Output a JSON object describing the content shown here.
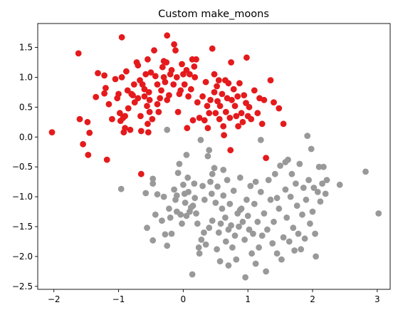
{
  "chart_data": {
    "type": "scatter",
    "title": "Custom make_moons",
    "xlabel": "",
    "ylabel": "",
    "xlim": [
      -2.25,
      3.2
    ],
    "ylim": [
      -2.55,
      1.9
    ],
    "xticks": [
      -2,
      -1,
      0,
      1,
      2,
      3
    ],
    "yticks": [
      -2.5,
      -2.0,
      -1.5,
      -1.0,
      -0.5,
      0.0,
      0.5,
      1.0,
      1.5
    ],
    "tick_labels_x": [
      "−2",
      "−1",
      "0",
      "1",
      "2",
      "3"
    ],
    "tick_labels_y": [
      "−2.5",
      "−2.0",
      "−1.5",
      "−1.0",
      "−0.5",
      "0.0",
      "0.5",
      "1.0",
      "1.5"
    ],
    "grid": false,
    "legend": "none",
    "series": [
      {
        "color": "#e41a1c",
        "points": [
          [
            -2.03,
            0.08
          ],
          [
            -1.62,
            1.4
          ],
          [
            -1.6,
            0.3
          ],
          [
            -1.55,
            -0.12
          ],
          [
            -1.48,
            0.25
          ],
          [
            -1.45,
            0.07
          ],
          [
            -1.47,
            -0.3
          ],
          [
            -1.35,
            0.67
          ],
          [
            -1.32,
            1.07
          ],
          [
            -1.22,
            1.03
          ],
          [
            -1.22,
            0.73
          ],
          [
            -1.2,
            0.82
          ],
          [
            -1.18,
            -0.38
          ],
          [
            -1.15,
            0.55
          ],
          [
            -1.1,
            0.3
          ],
          [
            -1.05,
            0.97
          ],
          [
            -1.02,
            0.65
          ],
          [
            -1.0,
            0.72
          ],
          [
            -0.98,
            0.4
          ],
          [
            -0.97,
            0.27
          ],
          [
            -0.95,
            1.0
          ],
          [
            -0.95,
            1.67
          ],
          [
            -0.93,
            0.32
          ],
          [
            -0.92,
            0.08
          ],
          [
            -0.9,
            0.35
          ],
          [
            -0.9,
            0.15
          ],
          [
            -0.88,
            1.1
          ],
          [
            -0.86,
            0.78
          ],
          [
            -0.85,
            0.48
          ],
          [
            -0.82,
            0.12
          ],
          [
            -0.8,
            0.72
          ],
          [
            -0.78,
            0.7
          ],
          [
            -0.76,
            0.88
          ],
          [
            -0.75,
            0.58
          ],
          [
            -0.72,
            1.25
          ],
          [
            -0.7,
            1.2
          ],
          [
            -0.67,
            0.95
          ],
          [
            -0.66,
            0.35
          ],
          [
            -0.65,
            0.1
          ],
          [
            -0.65,
            -0.62
          ],
          [
            -0.63,
            0.88
          ],
          [
            -0.6,
            0.68
          ],
          [
            -0.6,
            0.8
          ],
          [
            -0.58,
            1.05
          ],
          [
            -0.56,
            0.52
          ],
          [
            -0.55,
            0.22
          ],
          [
            -0.55,
            1.3
          ],
          [
            -0.54,
            0.08
          ],
          [
            -0.53,
            0.75
          ],
          [
            -0.52,
            0.42
          ],
          [
            -0.52,
            0.62
          ],
          [
            -0.5,
            1.08
          ],
          [
            -0.48,
            0.3
          ],
          [
            -0.45,
            1.45
          ],
          [
            -0.43,
            1.02
          ],
          [
            -0.4,
            0.88
          ],
          [
            -0.4,
            0.55
          ],
          [
            -0.38,
            0.42
          ],
          [
            -0.36,
            0.65
          ],
          [
            -0.34,
            0.78
          ],
          [
            -0.32,
            1.17
          ],
          [
            -0.3,
            1.27
          ],
          [
            -0.3,
            1.0
          ],
          [
            -0.28,
            0.92
          ],
          [
            -0.26,
            1.25
          ],
          [
            -0.25,
            1.7
          ],
          [
            -0.25,
            0.62
          ],
          [
            -0.22,
            0.7
          ],
          [
            -0.2,
            1.05
          ],
          [
            -0.18,
            1.12
          ],
          [
            -0.15,
            0.88
          ],
          [
            -0.14,
            1.55
          ],
          [
            -0.12,
            1.45
          ],
          [
            -0.1,
            1.0
          ],
          [
            -0.08,
            0.42
          ],
          [
            -0.06,
            0.72
          ],
          [
            -0.04,
            0.78
          ],
          [
            -0.02,
            1.22
          ],
          [
            0.0,
            1.05
          ],
          [
            0.02,
            0.88
          ],
          [
            0.05,
            1.12
          ],
          [
            0.06,
            0.15
          ],
          [
            0.08,
            0.68
          ],
          [
            0.1,
            1.05
          ],
          [
            0.12,
            0.8
          ],
          [
            0.14,
            1.3
          ],
          [
            0.15,
            0.28
          ],
          [
            0.17,
            1.18
          ],
          [
            0.18,
            1.0
          ],
          [
            0.2,
            1.3
          ],
          [
            0.22,
            0.58
          ],
          [
            0.25,
            0.32
          ],
          [
            0.3,
            0.68
          ],
          [
            0.33,
            0.28
          ],
          [
            0.35,
            0.92
          ],
          [
            0.37,
            0.52
          ],
          [
            0.38,
            0.15
          ],
          [
            0.4,
            0.4
          ],
          [
            0.42,
            0.62
          ],
          [
            0.45,
            1.48
          ],
          [
            0.48,
            0.75
          ],
          [
            0.5,
            0.4
          ],
          [
            0.52,
            0.85
          ],
          [
            0.53,
            0.6
          ],
          [
            0.55,
            0.95
          ],
          [
            0.56,
            0.3
          ],
          [
            0.57,
            0.52
          ],
          [
            0.6,
            0.72
          ],
          [
            0.62,
            0.18
          ],
          [
            0.63,
            0.03
          ],
          [
            0.65,
            0.95
          ],
          [
            0.66,
            0.42
          ],
          [
            0.68,
            0.65
          ],
          [
            0.7,
            0.9
          ],
          [
            0.72,
            0.32
          ],
          [
            0.73,
            -0.22
          ],
          [
            0.74,
            1.25
          ],
          [
            0.75,
            0.62
          ],
          [
            0.78,
            0.8
          ],
          [
            0.8,
            0.52
          ],
          [
            0.82,
            0.35
          ],
          [
            0.84,
            0.68
          ],
          [
            0.85,
            0.18
          ],
          [
            0.87,
            0.9
          ],
          [
            0.9,
            0.4
          ],
          [
            0.92,
            0.25
          ],
          [
            0.94,
            0.7
          ],
          [
            0.97,
            0.57
          ],
          [
            0.98,
            1.33
          ],
          [
            1.0,
            0.35
          ],
          [
            1.02,
            0.5
          ],
          [
            1.05,
            0.3
          ],
          [
            1.1,
            0.78
          ],
          [
            1.15,
            0.4
          ],
          [
            1.18,
            0.65
          ],
          [
            1.22,
            0.22
          ],
          [
            1.25,
            0.62
          ],
          [
            1.28,
            -0.35
          ],
          [
            1.35,
            0.95
          ],
          [
            1.4,
            0.58
          ],
          [
            1.48,
            0.48
          ],
          [
            1.55,
            0.22
          ],
          [
            -0.7,
            0.65
          ],
          [
            0.48,
            1.05
          ]
        ]
      },
      {
        "color": "#999999",
        "points": [
          [
            -0.96,
            -0.87
          ],
          [
            -0.58,
            -0.94
          ],
          [
            -0.56,
            -1.52
          ],
          [
            -0.47,
            -0.7
          ],
          [
            -0.47,
            -0.78
          ],
          [
            -0.47,
            -1.73
          ],
          [
            -0.43,
            -1.3
          ],
          [
            -0.4,
            -0.96
          ],
          [
            -0.33,
            -1.4
          ],
          [
            -0.3,
            -1.0
          ],
          [
            -0.28,
            -1.63
          ],
          [
            -0.25,
            0.12
          ],
          [
            -0.25,
            -1.82
          ],
          [
            -0.22,
            -1.2
          ],
          [
            -0.2,
            -1.35
          ],
          [
            -0.18,
            -1.62
          ],
          [
            -0.14,
            -0.88
          ],
          [
            -0.12,
            -1.05
          ],
          [
            -0.1,
            -1.25
          ],
          [
            -0.08,
            -0.6
          ],
          [
            -0.06,
            -0.45
          ],
          [
            -0.04,
            -1.3
          ],
          [
            -0.02,
            -1.45
          ],
          [
            0.0,
            -0.8
          ],
          [
            0.02,
            -0.95
          ],
          [
            0.03,
            -1.1
          ],
          [
            0.05,
            -0.3
          ],
          [
            0.05,
            -1.32
          ],
          [
            0.07,
            -0.68
          ],
          [
            0.08,
            -0.92
          ],
          [
            0.1,
            -1.25
          ],
          [
            0.12,
            -1.18
          ],
          [
            0.14,
            -2.3
          ],
          [
            0.15,
            -1.15
          ],
          [
            0.17,
            -0.78
          ],
          [
            0.18,
            -1.02
          ],
          [
            0.2,
            -1.28
          ],
          [
            0.22,
            -1.45
          ],
          [
            0.24,
            -1.85
          ],
          [
            0.25,
            -1.95
          ],
          [
            0.28,
            -1.72
          ],
          [
            0.3,
            -0.82
          ],
          [
            0.32,
            -1.6
          ],
          [
            0.35,
            -1.8
          ],
          [
            0.38,
            -0.32
          ],
          [
            0.4,
            -1.52
          ],
          [
            0.42,
            -0.75
          ],
          [
            0.44,
            -0.95
          ],
          [
            0.45,
            -1.4
          ],
          [
            0.48,
            -0.52
          ],
          [
            0.5,
            -1.1
          ],
          [
            0.52,
            -1.88
          ],
          [
            0.53,
            -0.83
          ],
          [
            0.55,
            -1.6
          ],
          [
            0.57,
            -2.08
          ],
          [
            0.58,
            -1.45
          ],
          [
            0.6,
            -1.2
          ],
          [
            0.62,
            -0.98
          ],
          [
            0.65,
            -1.35
          ],
          [
            0.66,
            -1.75
          ],
          [
            0.68,
            -0.72
          ],
          [
            0.7,
            -1.55
          ],
          [
            0.72,
            -1.12
          ],
          [
            0.74,
            -1.48
          ],
          [
            0.76,
            -1.85
          ],
          [
            0.78,
            -0.9
          ],
          [
            0.8,
            -1.65
          ],
          [
            0.82,
            -2.05
          ],
          [
            0.84,
            -1.28
          ],
          [
            0.86,
            -1.5
          ],
          [
            0.88,
            -0.68
          ],
          [
            0.9,
            -1.2
          ],
          [
            0.92,
            -1.42
          ],
          [
            0.95,
            -1.72
          ],
          [
            0.96,
            -2.35
          ],
          [
            0.98,
            -1.05
          ],
          [
            1.0,
            -1.32
          ],
          [
            1.02,
            -1.55
          ],
          [
            1.04,
            -0.82
          ],
          [
            1.06,
            -1.95
          ],
          [
            1.08,
            -1.62
          ],
          [
            1.1,
            -1.12
          ],
          [
            1.12,
            -0.75
          ],
          [
            1.15,
            -1.42
          ],
          [
            1.17,
            -1.85
          ],
          [
            1.2,
            -0.92
          ],
          [
            1.22,
            -1.65
          ],
          [
            1.25,
            -1.28
          ],
          [
            1.28,
            -2.25
          ],
          [
            1.3,
            -1.55
          ],
          [
            1.32,
            -0.72
          ],
          [
            1.35,
            -1.05
          ],
          [
            1.38,
            -1.78
          ],
          [
            1.4,
            -1.42
          ],
          [
            1.42,
            -0.62
          ],
          [
            1.45,
            -1.95
          ],
          [
            1.48,
            -1.2
          ],
          [
            1.5,
            -0.48
          ],
          [
            1.52,
            -2.05
          ],
          [
            1.55,
            -1.68
          ],
          [
            1.58,
            -0.88
          ],
          [
            1.6,
            -1.35
          ],
          [
            1.62,
            -0.38
          ],
          [
            1.64,
            -1.75
          ],
          [
            1.66,
            -1.0
          ],
          [
            1.68,
            -0.62
          ],
          [
            1.7,
            -1.52
          ],
          [
            1.72,
            -1.9
          ],
          [
            1.74,
            -0.78
          ],
          [
            1.76,
            -1.15
          ],
          [
            1.78,
            -1.62
          ],
          [
            1.8,
            -0.45
          ],
          [
            1.82,
            -1.88
          ],
          [
            1.84,
            -1.3
          ],
          [
            1.86,
            -0.85
          ],
          [
            1.88,
            -1.7
          ],
          [
            1.9,
            -1.05
          ],
          [
            1.92,
            0.02
          ],
          [
            1.94,
            -0.72
          ],
          [
            1.96,
            -1.45
          ],
          [
            1.98,
            -0.2
          ],
          [
            2.0,
            -1.25
          ],
          [
            2.02,
            -0.85
          ],
          [
            2.04,
            -1.62
          ],
          [
            2.05,
            -2.0
          ],
          [
            2.08,
            -0.92
          ],
          [
            2.1,
            -0.5
          ],
          [
            2.12,
            -1.08
          ],
          [
            2.15,
            -0.78
          ],
          [
            2.17,
            -0.5
          ],
          [
            2.2,
            -0.95
          ],
          [
            2.22,
            -0.72
          ],
          [
            2.42,
            -0.8
          ],
          [
            2.82,
            -0.58
          ],
          [
            3.02,
            -1.28
          ],
          [
            0.27,
            -0.05
          ],
          [
            0.4,
            -0.22
          ],
          [
            0.62,
            -0.55
          ],
          [
            1.2,
            -0.05
          ],
          [
            1.58,
            -0.42
          ],
          [
            1.45,
            -1.02
          ],
          [
            1.12,
            -2.12
          ],
          [
            0.7,
            -2.15
          ],
          [
            0.88,
            -1.22
          ],
          [
            0.33,
            -1.05
          ],
          [
            -0.1,
            -0.98
          ],
          [
            0.45,
            -0.62
          ]
        ]
      }
    ]
  }
}
